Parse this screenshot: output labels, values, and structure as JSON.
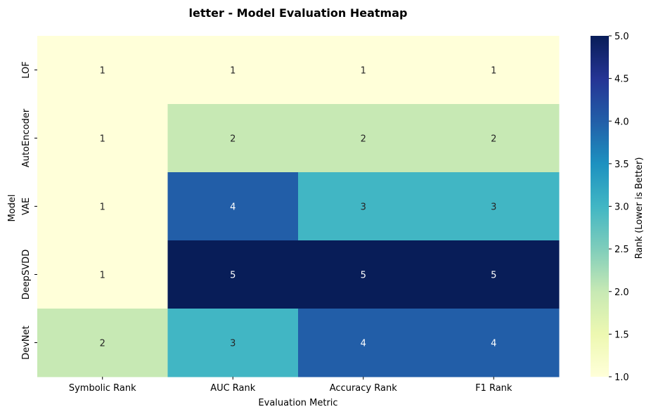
{
  "chart_data": {
    "type": "heatmap",
    "title": "letter - Model Evaluation Heatmap",
    "xlabel": "Evaluation Metric",
    "ylabel": "Model",
    "x_categories": [
      "Symbolic Rank",
      "AUC Rank",
      "Accuracy Rank",
      "F1 Rank"
    ],
    "y_categories": [
      "LOF",
      "AutoEncoder",
      "VAE",
      "DeepSVDD",
      "DevNet"
    ],
    "values": [
      [
        1,
        1,
        1,
        1
      ],
      [
        1,
        2,
        2,
        2
      ],
      [
        1,
        4,
        3,
        3
      ],
      [
        1,
        5,
        5,
        5
      ],
      [
        2,
        3,
        4,
        4
      ]
    ],
    "colorbar": {
      "label": "Rank (Lower is Better)",
      "range": [
        1.0,
        5.0
      ],
      "ticks": [
        "1.0",
        "1.5",
        "2.0",
        "2.5",
        "3.0",
        "3.5",
        "4.0",
        "4.5",
        "5.0"
      ],
      "colormap": "YlGnBu",
      "colors": [
        "#ffffd9",
        "#edf8b1",
        "#c7e9b4",
        "#7fcdbb",
        "#41b6c4",
        "#1d91c0",
        "#225ea8",
        "#253494",
        "#081d58"
      ]
    },
    "annotation_colors": {
      "light_cells": "#262626",
      "dark_cells": "#ffffff"
    },
    "legend": "colorbar-right"
  }
}
